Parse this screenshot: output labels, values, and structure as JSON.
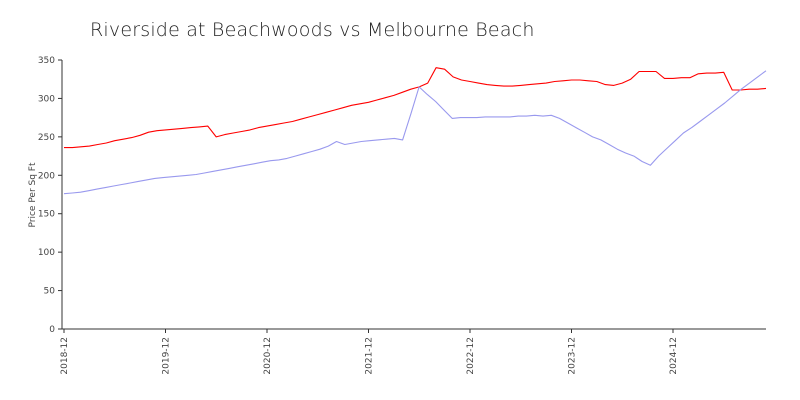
{
  "chart_data": {
    "type": "line",
    "title": "Riverside at Beachwoods vs Melbourne Beach",
    "xlabel": "",
    "ylabel": "Price Per Sq Ft",
    "ylim": [
      0,
      350
    ],
    "yticks": [
      0,
      50,
      100,
      150,
      200,
      250,
      300,
      350
    ],
    "xticks": [
      "2018-12",
      "2019-12",
      "2020-12",
      "2021-12",
      "2022-12",
      "2023-12",
      "2024-12"
    ],
    "x_start": "2018-12",
    "grid": false,
    "colors": {
      "red_series": "#ff0000",
      "blue_series": "#9999ee"
    },
    "series": [
      {
        "color": "#ff0000",
        "values": [
          236,
          236,
          237,
          238,
          240,
          242,
          245,
          247,
          249,
          252,
          256,
          258,
          259,
          260,
          261,
          262,
          263,
          264,
          250,
          253,
          255,
          257,
          259,
          262,
          264,
          266,
          268,
          270,
          273,
          276,
          279,
          282,
          285,
          288,
          291,
          293,
          295,
          298,
          301,
          304,
          308,
          312,
          315,
          320,
          340,
          338,
          328,
          324,
          322,
          320,
          318,
          317,
          316,
          316,
          317,
          318,
          319,
          320,
          322,
          323,
          324,
          324,
          323,
          322,
          318,
          317,
          320,
          325,
          335,
          335,
          335,
          326,
          326,
          327,
          327,
          332,
          333,
          333,
          334,
          311,
          311,
          312,
          312,
          313
        ]
      },
      {
        "color": "#9999ee",
        "values": [
          176,
          177,
          178,
          180,
          182,
          184,
          186,
          188,
          190,
          192,
          194,
          196,
          197,
          198,
          199,
          200,
          201,
          203,
          205,
          207,
          209,
          211,
          213,
          215,
          217,
          219,
          220,
          222,
          225,
          228,
          231,
          234,
          238,
          244,
          240,
          242,
          244,
          245,
          246,
          247,
          248,
          246,
          280,
          315,
          305,
          296,
          285,
          274,
          275,
          275,
          275,
          276,
          276,
          276,
          276,
          277,
          277,
          278,
          277,
          278,
          274,
          268,
          262,
          256,
          250,
          246,
          240,
          234,
          229,
          225,
          218,
          213,
          225,
          235,
          245,
          255,
          262,
          270,
          278,
          286,
          294,
          303,
          312,
          320,
          328,
          336
        ]
      }
    ]
  }
}
